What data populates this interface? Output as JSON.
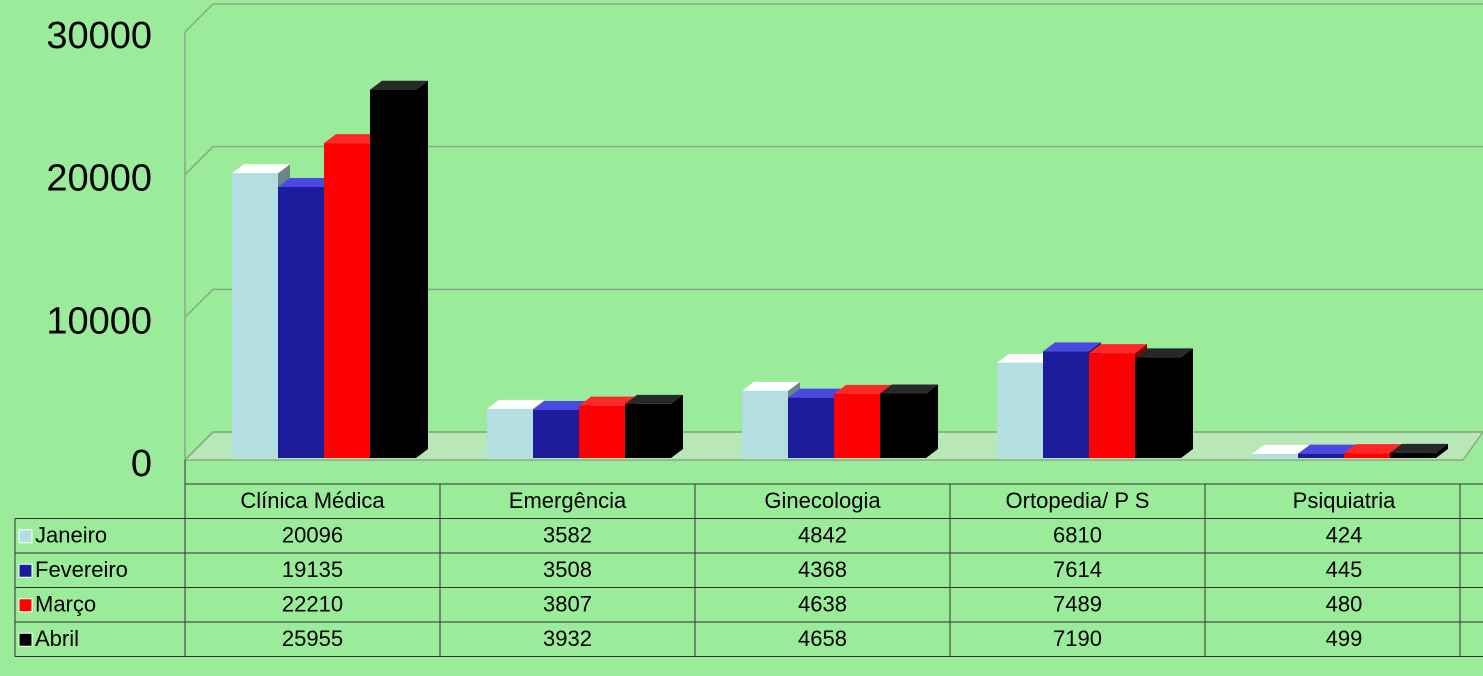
{
  "chart_data": {
    "type": "bar3d",
    "categories": [
      "Clínica Médica",
      "Emergência",
      "Ginecologia",
      "Ortopedia/ P S",
      "Psiquiatria"
    ],
    "series": [
      {
        "name": "Janeiro",
        "color": "#b3dfe3",
        "values": [
          20096,
          3582,
          4842,
          6810,
          424
        ]
      },
      {
        "name": "Fevereiro",
        "color": "#1c1c9c",
        "values": [
          19135,
          3508,
          4368,
          7614,
          445
        ]
      },
      {
        "name": "Março",
        "color": "#ff0000",
        "values": [
          22210,
          3807,
          4638,
          7489,
          480
        ]
      },
      {
        "name": "Abril",
        "color": "#000000",
        "values": [
          25955,
          3932,
          4658,
          7190,
          499
        ]
      }
    ],
    "ylim": [
      0,
      30000
    ],
    "yticks": [
      0,
      10000,
      20000,
      30000
    ],
    "grid": true
  }
}
